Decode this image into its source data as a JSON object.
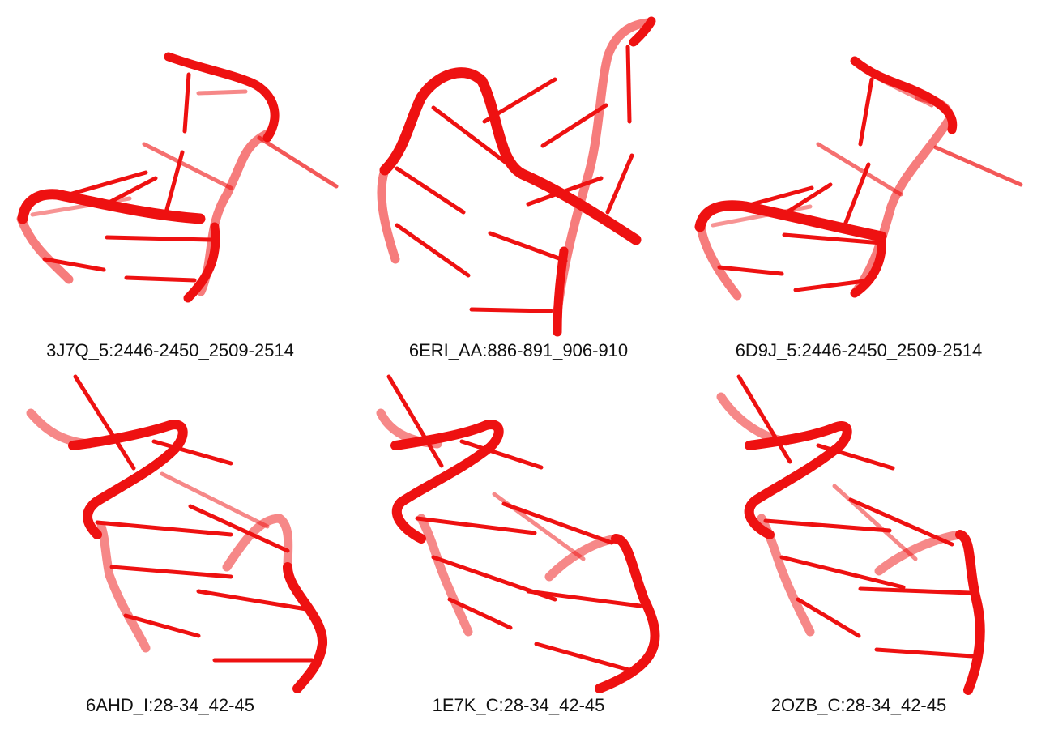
{
  "accent_color": "#e8141b",
  "panels": [
    {
      "caption": "3J7Q_5:2446-2450_2509-2514"
    },
    {
      "caption": "6ERI_AA:886-891_906-910"
    },
    {
      "caption": "6D9J_5:2446-2450_2509-2514"
    },
    {
      "caption": "6AHD_I:28-34_42-45"
    },
    {
      "caption": "1E7K_C:28-34_42-45"
    },
    {
      "caption": "2OZB_C:28-34_42-45"
    }
  ]
}
